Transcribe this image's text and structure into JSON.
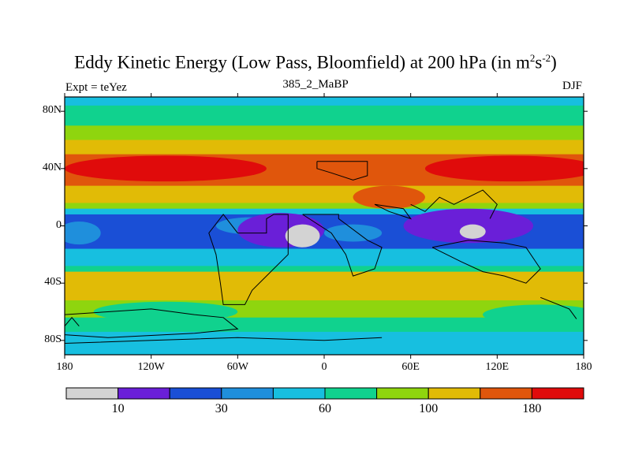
{
  "chart_data": {
    "type": "heatmap",
    "title_main": "Eddy Kinetic Energy (Low Pass, Bloomfield) at 200 hPa (in m",
    "title_sup1": "2",
    "title_mid": "s",
    "title_sup2": "-2",
    "title_end": ")",
    "subtitle": "385_2_MaBP",
    "left_label": "Expt = teYez",
    "right_label": "DJF",
    "xlim": [
      -180,
      180
    ],
    "ylim": [
      -90,
      90
    ],
    "lat_ticks": [
      "80N",
      "40N",
      "0",
      "40S",
      "80S"
    ],
    "lat_values": [
      80,
      40,
      0,
      -40,
      -80
    ],
    "lon_ticks": [
      "180",
      "120W",
      "60W",
      "0",
      "60E",
      "120E",
      "180"
    ],
    "lon_values": [
      -180,
      -120,
      -60,
      0,
      60,
      120,
      180
    ],
    "colorbar_colors": [
      "#d3d3d3",
      "#6a1fd8",
      "#1a4fd6",
      "#1f8fdc",
      "#17bfe0",
      "#10d28e",
      "#8fd50e",
      "#e1bb06",
      "#e0560c",
      "#e00b0b"
    ],
    "colorbar_labels": [
      "10",
      "30",
      "60",
      "100",
      "180"
    ],
    "zonal_bands": [
      {
        "lat_from": 90,
        "lat_to": 84,
        "level": 4
      },
      {
        "lat_from": 84,
        "lat_to": 70,
        "level": 5
      },
      {
        "lat_from": 70,
        "lat_to": 60,
        "level": 6
      },
      {
        "lat_from": 60,
        "lat_to": 50,
        "level": 7
      },
      {
        "lat_from": 50,
        "lat_to": 28,
        "level": 8
      },
      {
        "lat_from": 28,
        "lat_to": 16,
        "level": 7
      },
      {
        "lat_from": 16,
        "lat_to": 12,
        "level": 6
      },
      {
        "lat_from": 12,
        "lat_to": 8,
        "level": 4
      },
      {
        "lat_from": 8,
        "lat_to": -16,
        "level": 2
      },
      {
        "lat_from": -16,
        "lat_to": -28,
        "level": 4
      },
      {
        "lat_from": -28,
        "lat_to": -32,
        "level": 5
      },
      {
        "lat_from": -32,
        "lat_to": -52,
        "level": 7
      },
      {
        "lat_from": -52,
        "lat_to": -64,
        "level": 6
      },
      {
        "lat_from": -64,
        "lat_to": -74,
        "level": 5
      },
      {
        "lat_from": -74,
        "lat_to": -90,
        "level": 4
      }
    ],
    "blobs": [
      {
        "lon": -110,
        "lat": 40,
        "rlon": 70,
        "rlat": 9,
        "level": 9
      },
      {
        "lon": 130,
        "lat": 40,
        "rlon": 60,
        "rlat": 9,
        "level": 9
      },
      {
        "lon": -50,
        "lat": 0,
        "rlon": 25,
        "rlat": 6,
        "level": 3
      },
      {
        "lon": -30,
        "lat": -3,
        "rlon": 30,
        "rlat": 12,
        "level": 1
      },
      {
        "lon": 100,
        "lat": 0,
        "rlon": 45,
        "rlat": 12,
        "level": 1
      },
      {
        "lon": -15,
        "lat": -7,
        "rlon": 12,
        "rlat": 8,
        "level": 0
      },
      {
        "lon": 103,
        "lat": -4,
        "rlon": 9,
        "rlat": 5,
        "level": 0
      },
      {
        "lon": 20,
        "lat": -5,
        "rlon": 20,
        "rlat": 6,
        "level": 3
      },
      {
        "lon": -170,
        "lat": -5,
        "rlon": 15,
        "rlat": 8,
        "level": 3
      },
      {
        "lon": 45,
        "lat": 20,
        "rlon": 25,
        "rlat": 8,
        "level": 8
      },
      {
        "lon": -110,
        "lat": -60,
        "rlon": 50,
        "rlat": 7,
        "level": 5
      },
      {
        "lon": 150,
        "lat": -62,
        "rlon": 40,
        "rlat": 7,
        "level": 5
      }
    ]
  }
}
